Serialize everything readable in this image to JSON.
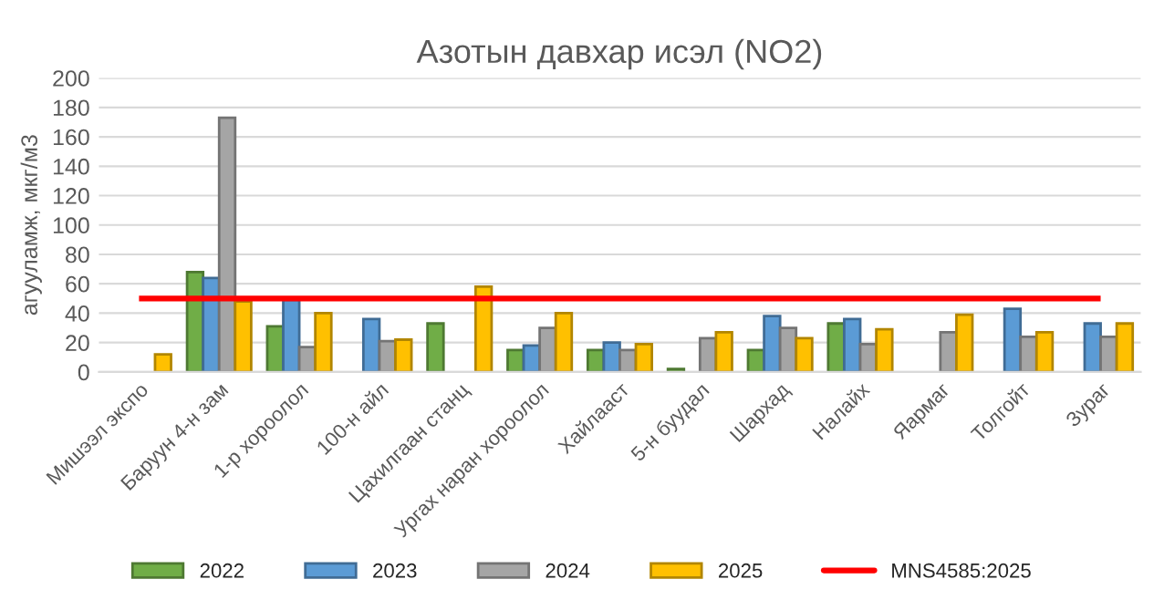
{
  "chart_data": {
    "type": "bar",
    "title": "Азотын давхар исэл (NO2)",
    "ylabel": "агууламж, мкг/м3",
    "categories": [
      "Мишээл экспо",
      "Баруун 4-н зам",
      "1-р хороолол",
      "100-н айл",
      "Цахилгаан станц",
      "Ургах наран хороолол",
      "Хайлааст",
      "5-н буудал",
      "Шархад",
      "Налайх",
      "Яармаг",
      "Толгойт",
      "Зураг"
    ],
    "series": [
      {
        "name": "2022",
        "color": "#70ad47",
        "values": [
          null,
          68,
          31,
          null,
          33,
          15,
          15,
          2,
          15,
          33,
          null,
          null,
          null
        ]
      },
      {
        "name": "2023",
        "color": "#5b9bd5",
        "values": [
          null,
          64,
          49,
          36,
          null,
          18,
          20,
          null,
          38,
          36,
          null,
          43,
          33
        ]
      },
      {
        "name": "2024",
        "color": "#a5a5a5",
        "values": [
          null,
          173,
          17,
          21,
          null,
          30,
          15,
          23,
          30,
          19,
          27,
          24,
          24
        ]
      },
      {
        "name": "2025",
        "color": "#ffc000",
        "values": [
          12,
          48,
          40,
          22,
          58,
          40,
          19,
          27,
          23,
          29,
          39,
          27,
          33
        ]
      },
      {
        "name": "MNS4585:2025",
        "type": "line",
        "color": "#ff0000",
        "values": [
          50,
          50,
          50,
          50,
          50,
          50,
          50,
          50,
          50,
          50,
          50,
          50,
          50
        ]
      }
    ],
    "ylim": [
      0,
      200
    ],
    "yticks": [
      0,
      20,
      40,
      60,
      80,
      100,
      120,
      140,
      160,
      180,
      200
    ],
    "grid": "y",
    "legend": "bottom"
  }
}
